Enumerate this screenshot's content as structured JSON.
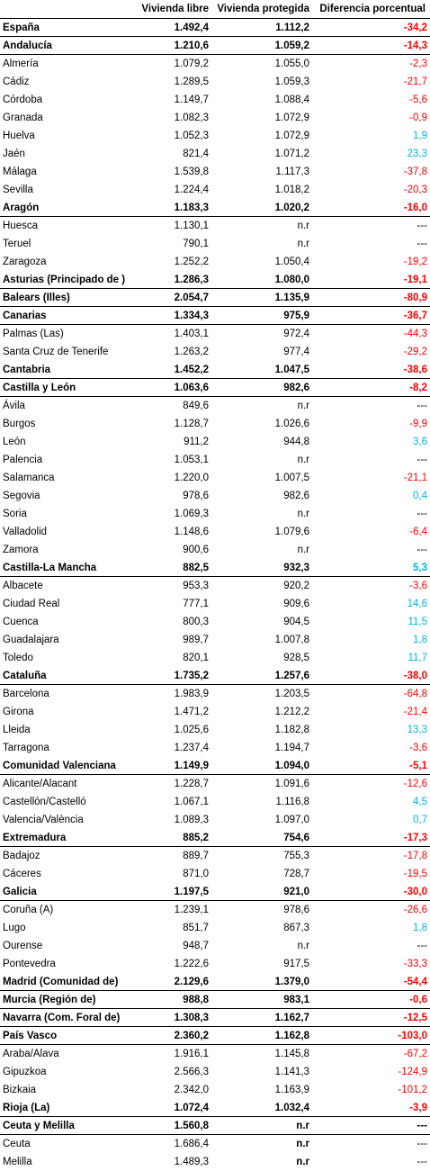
{
  "header": {
    "col1": "Vivienda libre",
    "col2": "Vivienda protegida",
    "col3": "Diferencia porcentual"
  },
  "colors": {
    "negative": "#ff0000",
    "positive": "#00b0f0"
  },
  "rows": [
    {
      "name": "España",
      "libre": "1.492,4",
      "protegida": "1.112,2",
      "diff": "-34,2",
      "bold": true,
      "sign": "neg"
    },
    {
      "name": "Andalucía",
      "libre": "1.210,6",
      "protegida": "1.059,2",
      "diff": "-14,3",
      "bold": true,
      "sign": "neg"
    },
    {
      "name": "Almería",
      "libre": "1.079,2",
      "protegida": "1.055,0",
      "diff": "-2,3",
      "bold": false,
      "sign": "neg"
    },
    {
      "name": "Cádiz",
      "libre": "1.289,5",
      "protegida": "1.059,3",
      "diff": "-21,7",
      "bold": false,
      "sign": "neg"
    },
    {
      "name": "Córdoba",
      "libre": "1.149,7",
      "protegida": "1.088,4",
      "diff": "-5,6",
      "bold": false,
      "sign": "neg"
    },
    {
      "name": "Granada",
      "libre": "1.082,3",
      "protegida": "1.072,9",
      "diff": "-0,9",
      "bold": false,
      "sign": "neg"
    },
    {
      "name": "Huelva",
      "libre": "1.052,3",
      "protegida": "1.072,9",
      "diff": "1,9",
      "bold": false,
      "sign": "pos"
    },
    {
      "name": "Jaén",
      "libre": "821,4",
      "protegida": "1.071,2",
      "diff": "23,3",
      "bold": false,
      "sign": "pos"
    },
    {
      "name": "Málaga",
      "libre": "1.539,8",
      "protegida": "1.117,3",
      "diff": "-37,8",
      "bold": false,
      "sign": "neg"
    },
    {
      "name": "Sevilla",
      "libre": "1.224,4",
      "protegida": "1.018,2",
      "diff": "-20,3",
      "bold": false,
      "sign": "neg"
    },
    {
      "name": "Aragón",
      "libre": "1.183,3",
      "protegida": "1.020,2",
      "diff": "-16,0",
      "bold": true,
      "sign": "neg"
    },
    {
      "name": "Huesca",
      "libre": "1.130,1",
      "protegida": "n.r",
      "diff": "---",
      "bold": false,
      "sign": "none"
    },
    {
      "name": "Teruel",
      "libre": "790,1",
      "protegida": "n.r",
      "diff": "---",
      "bold": false,
      "sign": "none"
    },
    {
      "name": "Zaragoza",
      "libre": "1.252,2",
      "protegida": "1.050,4",
      "diff": "-19,2",
      "bold": false,
      "sign": "neg"
    },
    {
      "name": "Asturias (Principado de )",
      "libre": "1.286,3",
      "protegida": "1.080,0",
      "diff": "-19,1",
      "bold": true,
      "sign": "neg"
    },
    {
      "name": "Balears (Illes)",
      "libre": "2.054,7",
      "protegida": "1.135,9",
      "diff": "-80,9",
      "bold": true,
      "sign": "neg"
    },
    {
      "name": "Canarias",
      "libre": "1.334,3",
      "protegida": "975,9",
      "diff": "-36,7",
      "bold": true,
      "sign": "neg"
    },
    {
      "name": "Palmas (Las)",
      "libre": "1.403,1",
      "protegida": "972,4",
      "diff": "-44,3",
      "bold": false,
      "sign": "neg"
    },
    {
      "name": "Santa Cruz de Tenerife",
      "libre": "1.263,2",
      "protegida": "977,4",
      "diff": "-29,2",
      "bold": false,
      "sign": "neg"
    },
    {
      "name": "Cantabria",
      "libre": "1.452,2",
      "protegida": "1.047,5",
      "diff": "-38,6",
      "bold": true,
      "sign": "neg"
    },
    {
      "name": "Castilla y León",
      "libre": "1.063,6",
      "protegida": "982,6",
      "diff": "-8,2",
      "bold": true,
      "sign": "neg"
    },
    {
      "name": "Ávila",
      "libre": "849,6",
      "protegida": "n.r",
      "diff": "---",
      "bold": false,
      "sign": "none"
    },
    {
      "name": "Burgos",
      "libre": "1.128,7",
      "protegida": "1.026,6",
      "diff": "-9,9",
      "bold": false,
      "sign": "neg"
    },
    {
      "name": "León",
      "libre": "911,2",
      "protegida": "944,8",
      "diff": "3,6",
      "bold": false,
      "sign": "pos"
    },
    {
      "name": "Palencia",
      "libre": "1.053,1",
      "protegida": "n.r",
      "diff": "---",
      "bold": false,
      "sign": "none"
    },
    {
      "name": "Salamanca",
      "libre": "1.220,0",
      "protegida": "1.007,5",
      "diff": "-21,1",
      "bold": false,
      "sign": "neg"
    },
    {
      "name": "Segovia",
      "libre": "978,6",
      "protegida": "982,6",
      "diff": "0,4",
      "bold": false,
      "sign": "pos"
    },
    {
      "name": "Soria",
      "libre": "1.069,3",
      "protegida": "n.r",
      "diff": "---",
      "bold": false,
      "sign": "none"
    },
    {
      "name": "Valladolid",
      "libre": "1.148,6",
      "protegida": "1.079,6",
      "diff": "-6,4",
      "bold": false,
      "sign": "neg"
    },
    {
      "name": "Zamora",
      "libre": "900,6",
      "protegida": "n.r",
      "diff": "---",
      "bold": false,
      "sign": "none"
    },
    {
      "name": "Castilla-La Mancha",
      "libre": "882,5",
      "protegida": "932,3",
      "diff": "5,3",
      "bold": true,
      "sign": "pos"
    },
    {
      "name": "Albacete",
      "libre": "953,3",
      "protegida": "920,2",
      "diff": "-3,6",
      "bold": false,
      "sign": "neg"
    },
    {
      "name": "Ciudad Real",
      "libre": "777,1",
      "protegida": "909,6",
      "diff": "14,6",
      "bold": false,
      "sign": "pos"
    },
    {
      "name": "Cuenca",
      "libre": "800,3",
      "protegida": "904,5",
      "diff": "11,5",
      "bold": false,
      "sign": "pos"
    },
    {
      "name": "Guadalajara",
      "libre": "989,7",
      "protegida": "1.007,8",
      "diff": "1,8",
      "bold": false,
      "sign": "pos"
    },
    {
      "name": "Toledo",
      "libre": "820,1",
      "protegida": "928,5",
      "diff": "11,7",
      "bold": false,
      "sign": "pos"
    },
    {
      "name": "Cataluña",
      "libre": "1.735,2",
      "protegida": "1.257,6",
      "diff": "-38,0",
      "bold": true,
      "sign": "neg"
    },
    {
      "name": "Barcelona",
      "libre": "1.983,9",
      "protegida": "1.203,5",
      "diff": "-64,8",
      "bold": false,
      "sign": "neg"
    },
    {
      "name": "Girona",
      "libre": "1.471,2",
      "protegida": "1.212,2",
      "diff": "-21,4",
      "bold": false,
      "sign": "neg"
    },
    {
      "name": "Lleida",
      "libre": "1.025,6",
      "protegida": "1.182,8",
      "diff": "13,3",
      "bold": false,
      "sign": "pos"
    },
    {
      "name": "Tarragona",
      "libre": "1.237,4",
      "protegida": "1.194,7",
      "diff": "-3,6",
      "bold": false,
      "sign": "neg"
    },
    {
      "name": "Comunidad Valenciana",
      "libre": "1.149,9",
      "protegida": "1.094,0",
      "diff": "-5,1",
      "bold": true,
      "sign": "neg"
    },
    {
      "name": "Alicante/Alacant",
      "libre": "1.228,7",
      "protegida": "1.091,6",
      "diff": "-12,6",
      "bold": false,
      "sign": "neg"
    },
    {
      "name": "Castellón/Castelló",
      "libre": "1.067,1",
      "protegida": "1.116,8",
      "diff": "4,5",
      "bold": false,
      "sign": "pos"
    },
    {
      "name": "Valencia/València",
      "libre": "1.089,3",
      "protegida": "1.097,0",
      "diff": "0,7",
      "bold": false,
      "sign": "pos"
    },
    {
      "name": "Extremadura",
      "libre": "885,2",
      "protegida": "754,6",
      "diff": "-17,3",
      "bold": true,
      "sign": "neg"
    },
    {
      "name": "Badajoz",
      "libre": "889,7",
      "protegida": "755,3",
      "diff": "-17,8",
      "bold": false,
      "sign": "neg"
    },
    {
      "name": "Cáceres",
      "libre": "871,0",
      "protegida": "728,7",
      "diff": "-19,5",
      "bold": false,
      "sign": "neg"
    },
    {
      "name": "Galicia",
      "libre": "1.197,5",
      "protegida": "921,0",
      "diff": "-30,0",
      "bold": true,
      "sign": "neg"
    },
    {
      "name": "Coruña (A)",
      "libre": "1.239,1",
      "protegida": "978,6",
      "diff": "-26,6",
      "bold": false,
      "sign": "neg"
    },
    {
      "name": "Lugo",
      "libre": "851,7",
      "protegida": "867,3",
      "diff": "1,8",
      "bold": false,
      "sign": "pos"
    },
    {
      "name": "Ourense",
      "libre": "948,7",
      "protegida": "n.r",
      "diff": "---",
      "bold": false,
      "sign": "none"
    },
    {
      "name": "Pontevedra",
      "libre": "1.222,6",
      "protegida": "917,5",
      "diff": "-33,3",
      "bold": false,
      "sign": "neg"
    },
    {
      "name": "Madrid (Comunidad de)",
      "libre": "2.129,6",
      "protegida": "1.379,0",
      "diff": "-54,4",
      "bold": true,
      "sign": "neg"
    },
    {
      "name": "Murcia (Región de)",
      "libre": "988,8",
      "protegida": "983,1",
      "diff": "-0,6",
      "bold": true,
      "sign": "neg"
    },
    {
      "name": "Navarra (Com. Foral de)",
      "libre": "1.308,3",
      "protegida": "1.162,7",
      "diff": "-12,5",
      "bold": true,
      "sign": "neg"
    },
    {
      "name": "País Vasco",
      "libre": "2.360,2",
      "protegida": "1.162,8",
      "diff": "-103,0",
      "bold": true,
      "sign": "neg"
    },
    {
      "name": "Araba/Alava",
      "libre": "1.916,1",
      "protegida": "1.145,8",
      "diff": "-67,2",
      "bold": false,
      "sign": "neg"
    },
    {
      "name": "Gipuzkoa",
      "libre": "2.566,3",
      "protegida": "1.141,3",
      "diff": "-124,9",
      "bold": false,
      "sign": "neg"
    },
    {
      "name": "Bizkaia",
      "libre": "2.342,0",
      "protegida": "1.163,9",
      "diff": "-101,2",
      "bold": false,
      "sign": "neg"
    },
    {
      "name": "Rioja (La)",
      "libre": "1.072,4",
      "protegida": "1.032,4",
      "diff": "-3,9",
      "bold": true,
      "sign": "neg"
    },
    {
      "name": "Ceuta y Melilla",
      "libre": "1.560,8",
      "protegida": "n.r",
      "diff": "---",
      "bold": true,
      "sign": "none"
    },
    {
      "name": "Ceuta",
      "libre": "1.686,4",
      "protegida": "n.r",
      "diff": "---",
      "bold": false,
      "sign": "none",
      "nrbold": true
    },
    {
      "name": "Melilla",
      "libre": "1.489,3",
      "protegida": "n.r",
      "diff": "---",
      "bold": false,
      "sign": "none",
      "nrbold": true
    }
  ]
}
